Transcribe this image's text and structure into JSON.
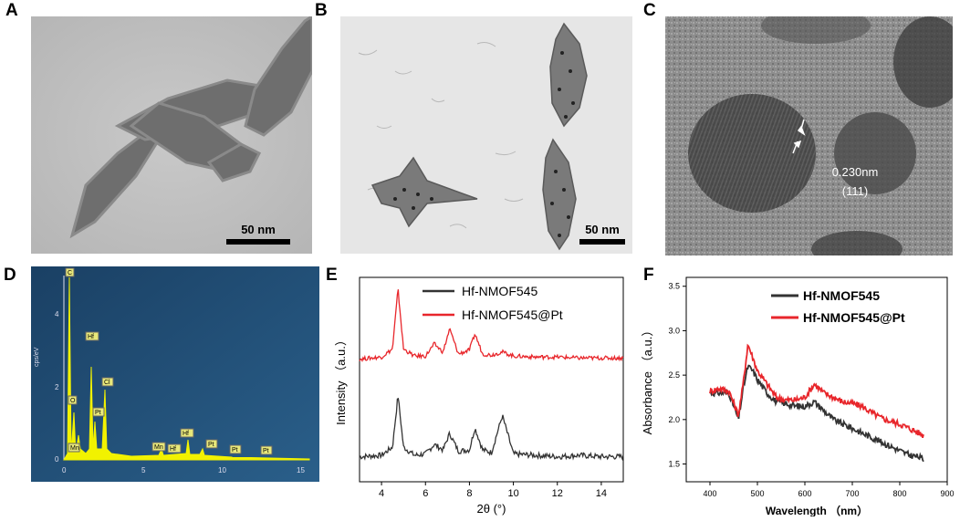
{
  "panels": {
    "A": {
      "letter": "A",
      "scale_bar": "50 nm"
    },
    "B": {
      "letter": "B",
      "scale_bar": "50 nm"
    },
    "C": {
      "letter": "C",
      "spacing_label": "0.230nm",
      "plane_label": "(111)"
    },
    "D": {
      "letter": "D",
      "y_unit": "cps/eV",
      "y_ticks": [
        "4",
        "2",
        "0"
      ],
      "x_ticks": [
        "0",
        "5",
        "10",
        "15"
      ],
      "peak_labels": [
        "C",
        "O",
        "Hf",
        "Cl",
        "Pt",
        "Mn",
        "Hf",
        "Pt",
        "Pt",
        "Pt",
        "Mn",
        "Hf"
      ]
    },
    "E": {
      "letter": "E"
    },
    "F": {
      "letter": "F"
    }
  },
  "colors": {
    "black_series": "#333333",
    "red_series": "#e8262b",
    "eds_spectrum": "#f2f200",
    "eds_bg": "#1a4a70"
  },
  "chart_data": [
    {
      "type": "line",
      "panel": "E",
      "xlabel": "2θ (°)",
      "ylabel": "Intensity （a.u.）",
      "xlim": [
        3,
        15
      ],
      "x_ticks": [
        "4",
        "6",
        "8",
        "10",
        "12",
        "14"
      ],
      "legend_position": "top-right",
      "series": [
        {
          "name": "Hf-NMOF545",
          "color": "#333333",
          "x": [
            3,
            4,
            4.5,
            4.75,
            5,
            5.5,
            6,
            6.4,
            6.8,
            7.1,
            7.5,
            8,
            8.25,
            8.6,
            9,
            9.5,
            10,
            11,
            12,
            13,
            14,
            15
          ],
          "y": [
            0.05,
            0.06,
            0.12,
            0.5,
            0.12,
            0.06,
            0.07,
            0.14,
            0.1,
            0.22,
            0.09,
            0.1,
            0.26,
            0.1,
            0.08,
            0.35,
            0.07,
            0.06,
            0.05,
            0.06,
            0.05,
            0.05
          ]
        },
        {
          "name": "Hf-NMOF545@Pt",
          "color": "#e8262b",
          "x": [
            3,
            4,
            4.5,
            4.75,
            5,
            5.5,
            6,
            6.4,
            6.8,
            7.1,
            7.5,
            8,
            8.25,
            8.6,
            9,
            9.5,
            10,
            11,
            12,
            13,
            14,
            15
          ],
          "y": [
            0.05,
            0.07,
            0.15,
            0.75,
            0.15,
            0.08,
            0.08,
            0.2,
            0.12,
            0.35,
            0.1,
            0.14,
            0.3,
            0.1,
            0.09,
            0.12,
            0.08,
            0.07,
            0.07,
            0.06,
            0.06,
            0.06
          ]
        }
      ]
    },
    {
      "type": "line",
      "panel": "F",
      "xlabel": "Wavelength （nm）",
      "ylabel": "Absorbance （a.u.）",
      "xlim": [
        350,
        900
      ],
      "ylim": [
        1.3,
        3.6
      ],
      "x_ticks": [
        "400",
        "500",
        "600",
        "700",
        "800",
        "900"
      ],
      "y_ticks": [
        "1.5",
        "2.0",
        "2.5",
        "3.0",
        "3.5"
      ],
      "legend_position": "top-right",
      "series": [
        {
          "name": "Hf-NMOF545",
          "color": "#333333",
          "x": [
            400,
            420,
            440,
            460,
            470,
            480,
            490,
            500,
            520,
            540,
            560,
            580,
            600,
            620,
            640,
            660,
            680,
            700,
            720,
            740,
            760,
            780,
            800,
            820,
            840,
            850
          ],
          "y": [
            2.3,
            2.3,
            2.3,
            2.0,
            2.35,
            2.6,
            2.55,
            2.45,
            2.3,
            2.2,
            2.18,
            2.15,
            2.15,
            2.2,
            2.1,
            2.0,
            1.95,
            1.9,
            1.85,
            1.8,
            1.75,
            1.7,
            1.65,
            1.6,
            1.58,
            1.55
          ]
        },
        {
          "name": "Hf-NMOF545@Pt",
          "color": "#e8262b",
          "x": [
            400,
            420,
            440,
            460,
            470,
            480,
            490,
            500,
            520,
            540,
            560,
            580,
            600,
            620,
            640,
            660,
            680,
            700,
            720,
            740,
            760,
            780,
            800,
            820,
            840,
            850
          ],
          "y": [
            2.32,
            2.35,
            2.32,
            2.05,
            2.4,
            2.85,
            2.7,
            2.55,
            2.4,
            2.25,
            2.22,
            2.22,
            2.25,
            2.4,
            2.3,
            2.25,
            2.2,
            2.18,
            2.15,
            2.08,
            2.02,
            1.98,
            1.95,
            1.9,
            1.85,
            1.82
          ]
        }
      ]
    }
  ]
}
